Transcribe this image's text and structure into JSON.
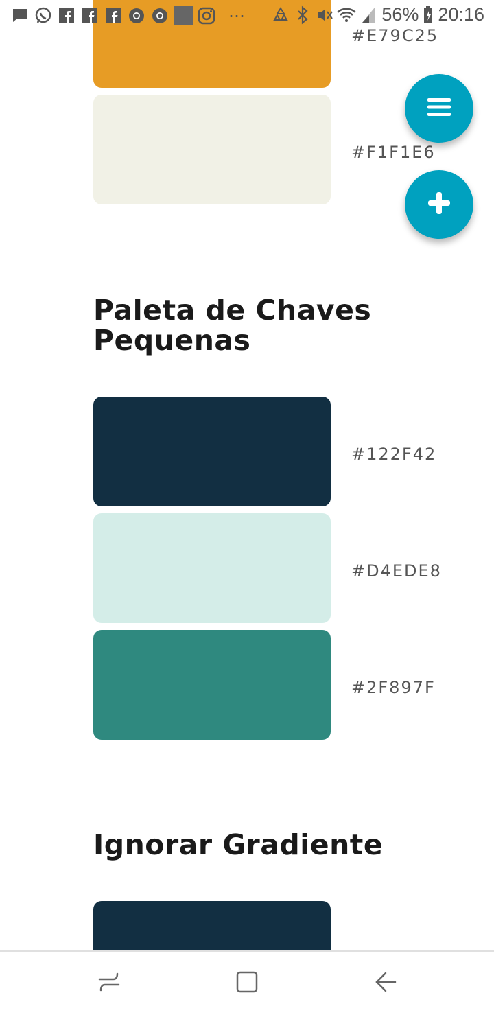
{
  "status_bar": {
    "battery": "56%",
    "time": "20:16",
    "more_dots": "⋯",
    "left_icons": [
      "message-icon",
      "whatsapp-icon",
      "facebook-icon",
      "facebook-icon",
      "facebook-icon",
      "chrome-icon",
      "chrome-icon",
      "gallery-icon",
      "instagram-icon"
    ],
    "right_icons": [
      "recycle-icon",
      "bluetooth-icon",
      "mute-icon",
      "wifi-icon",
      "signal-icon",
      "battery-icon"
    ]
  },
  "palettes": [
    {
      "title": "",
      "colors": [
        {
          "hex_label": "#E79C25",
          "color": "#E79C25"
        },
        {
          "hex_label": "#F1F1E6",
          "color": "#F1F1E6"
        }
      ]
    },
    {
      "title": "Paleta de Chaves Pequenas",
      "colors": [
        {
          "hex_label": "#122F42",
          "color": "#122F42"
        },
        {
          "hex_label": "#D4EDE8",
          "color": "#D4EDE8"
        },
        {
          "hex_label": "#2F897F",
          "color": "#2F897F"
        }
      ]
    },
    {
      "title": "Ignorar Gradiente",
      "colors": [
        {
          "hex_label": "",
          "color": "#122F42"
        }
      ]
    }
  ],
  "fabs": {
    "menu_icon": "menu-icon",
    "add_icon": "plus-icon",
    "color": "#00A1BF"
  },
  "nav_bar": {
    "icons": [
      "recent-apps-icon",
      "home-icon",
      "back-icon"
    ]
  }
}
